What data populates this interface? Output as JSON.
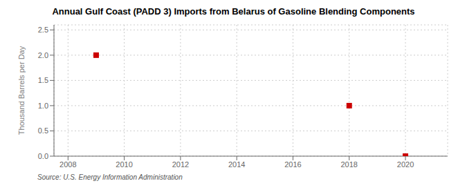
{
  "chart_data": {
    "type": "scatter",
    "title": "Annual Gulf Coast (PADD 3) Imports from Belarus of Gasoline Blending Components",
    "y_label": "Thousand Barrels per Day",
    "source": "Source: U.S. Energy Information Administration",
    "x": [
      2009,
      2018,
      2020
    ],
    "values": [
      2.0,
      1.0,
      0.0
    ],
    "color": "#cc0000",
    "marker": "square",
    "xlim": [
      2007.5,
      2021.5
    ],
    "ylim": [
      0.0,
      2.6
    ],
    "xticks": [
      2008,
      2010,
      2012,
      2014,
      2016,
      2018,
      2020
    ],
    "yticks": [
      {
        "value": 0.0,
        "label": "0.0"
      },
      0.5,
      {
        "value": 1.0,
        "label": "1.0"
      },
      1.5,
      {
        "value": 2.0,
        "label": "2.0"
      },
      2.5
    ],
    "grid": true
  }
}
